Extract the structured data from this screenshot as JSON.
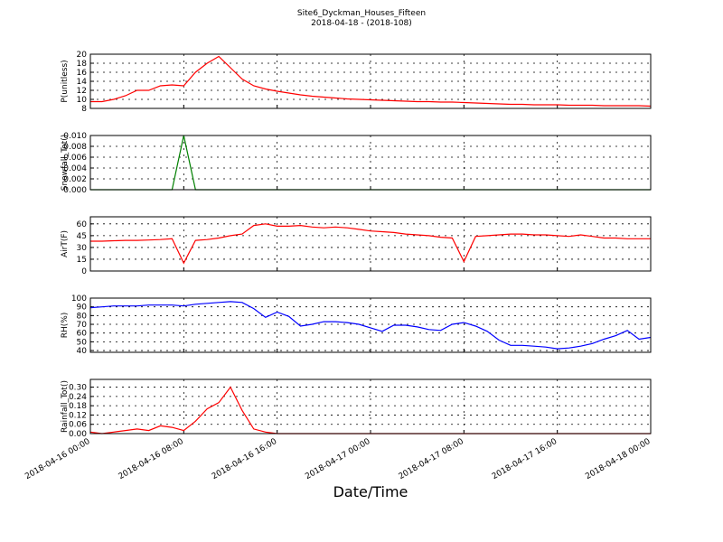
{
  "title": "Site6_Dyckman_Houses_Fifteen",
  "subtitle": "2018-04-18 - (2018-108)",
  "x_axis": {
    "label": "Date/Time",
    "xlim": [
      "2018-04-16 00:00",
      "2018-04-18 00:00"
    ],
    "xticks": [
      "2018-04-16 00:00",
      "2018-04-16 08:00",
      "2018-04-16 16:00",
      "2018-04-17 00:00",
      "2018-04-17 08:00",
      "2018-04-17 16:00",
      "2018-04-18 00:00"
    ],
    "x": [
      "2018-04-16 00:00",
      "2018-04-16 01:00",
      "2018-04-16 02:00",
      "2018-04-16 03:00",
      "2018-04-16 04:00",
      "2018-04-16 05:00",
      "2018-04-16 06:00",
      "2018-04-16 07:00",
      "2018-04-16 08:00",
      "2018-04-16 09:00",
      "2018-04-16 10:00",
      "2018-04-16 11:00",
      "2018-04-16 12:00",
      "2018-04-16 13:00",
      "2018-04-16 14:00",
      "2018-04-16 15:00",
      "2018-04-16 16:00",
      "2018-04-16 17:00",
      "2018-04-16 18:00",
      "2018-04-16 19:00",
      "2018-04-16 20:00",
      "2018-04-16 21:00",
      "2018-04-16 22:00",
      "2018-04-16 23:00",
      "2018-04-17 00:00",
      "2018-04-17 01:00",
      "2018-04-17 02:00",
      "2018-04-17 03:00",
      "2018-04-17 04:00",
      "2018-04-17 05:00",
      "2018-04-17 06:00",
      "2018-04-17 07:00",
      "2018-04-17 08:00",
      "2018-04-17 09:00",
      "2018-04-17 10:00",
      "2018-04-17 11:00",
      "2018-04-17 12:00",
      "2018-04-17 13:00",
      "2018-04-17 14:00",
      "2018-04-17 15:00",
      "2018-04-17 16:00",
      "2018-04-17 17:00",
      "2018-04-17 18:00",
      "2018-04-17 19:00",
      "2018-04-17 20:00",
      "2018-04-17 21:00",
      "2018-04-17 22:00",
      "2018-04-17 23:00",
      "2018-04-18 00:00"
    ]
  },
  "chart_data": [
    {
      "type": "line",
      "ylabel": "P(unitless)",
      "color": "#ff0000",
      "ylim": [
        8,
        20
      ],
      "yticks": [
        8,
        10,
        12,
        14,
        16,
        18,
        20
      ],
      "grid": true,
      "values": [
        9.5,
        9.5,
        10,
        10.8,
        12,
        12,
        13,
        13.2,
        13,
        16,
        18,
        19.5,
        17,
        14.5,
        13,
        12.3,
        11.8,
        11.4,
        11,
        10.7,
        10.5,
        10.3,
        10.1,
        10,
        9.9,
        9.8,
        9.7,
        9.6,
        9.5,
        9.5,
        9.4,
        9.4,
        9.3,
        9.2,
        9.1,
        9.0,
        8.9,
        8.9,
        8.8,
        8.8,
        8.8,
        8.7,
        8.7,
        8.7,
        8.6,
        8.6,
        8.6,
        8.6,
        8.5
      ]
    },
    {
      "type": "line",
      "ylabel": "Snowfall_Tot()",
      "color": "#008000",
      "ylim": [
        0,
        0.01
      ],
      "yticks": [
        {
          "value": 0,
          "label": "0.000"
        },
        {
          "value": 0.002,
          "label": "0.002"
        },
        {
          "value": 0.004,
          "label": "0.004"
        },
        {
          "value": 0.006,
          "label": "0.006"
        },
        {
          "value": 0.008,
          "label": "0.008"
        },
        {
          "value": 0.01,
          "label": "0.010"
        }
      ],
      "grid": true,
      "values": [
        0,
        0,
        0,
        0,
        0,
        0,
        0,
        0,
        0.01,
        0,
        0,
        0,
        0,
        0,
        0,
        0,
        0,
        0,
        0,
        0,
        0,
        0,
        0,
        0,
        0,
        0,
        0,
        0,
        0,
        0,
        0,
        0,
        0,
        0,
        0,
        0,
        0,
        0,
        0,
        0,
        0,
        0,
        0,
        0,
        0,
        0,
        0,
        0,
        0
      ]
    },
    {
      "type": "line",
      "ylabel": "AirT(F)",
      "color": "#ff0000",
      "ylim": [
        0,
        69
      ],
      "yticks": [
        0,
        15,
        30,
        45,
        60
      ],
      "grid": true,
      "values": [
        38,
        38,
        38.5,
        39,
        39,
        39.5,
        40,
        41,
        10,
        39,
        40,
        42,
        45,
        47,
        58,
        60,
        57,
        57,
        58,
        56,
        55,
        56,
        55,
        53,
        51,
        50,
        49,
        47,
        46,
        45,
        43,
        42,
        12,
        44,
        45,
        46,
        47,
        47,
        46,
        46,
        45,
        44,
        46,
        44,
        42,
        42,
        41,
        41,
        41
      ]
    },
    {
      "type": "line",
      "ylabel": "RH(%)",
      "color": "#0000ff",
      "ylim": [
        38,
        100
      ],
      "yticks": [
        40,
        50,
        60,
        70,
        80,
        90,
        100
      ],
      "grid": true,
      "values": [
        89,
        90,
        91,
        91,
        91,
        92,
        92,
        92,
        91,
        93,
        94,
        95,
        96,
        95,
        88,
        78,
        84,
        79,
        68,
        70,
        73,
        73,
        72,
        70,
        66,
        62,
        69,
        69,
        67,
        64,
        63,
        70,
        72,
        68,
        62,
        52,
        46,
        46,
        45,
        44,
        42,
        43,
        45,
        48,
        53,
        57,
        63,
        53,
        55
      ]
    },
    {
      "type": "line",
      "ylabel": "Rainfall_Tot()",
      "color": "#ff0000",
      "ylim": [
        0,
        0.35
      ],
      "yticks": [
        {
          "value": 0,
          "label": "0.00"
        },
        {
          "value": 0.06,
          "label": "0.06"
        },
        {
          "value": 0.12,
          "label": "0.12"
        },
        {
          "value": 0.18,
          "label": "0.18"
        },
        {
          "value": 0.24,
          "label": "0.24"
        },
        {
          "value": 0.3,
          "label": "0.30"
        }
      ],
      "grid": true,
      "values": [
        0.01,
        0,
        0.01,
        0.02,
        0.03,
        0.02,
        0.05,
        0.04,
        0.02,
        0.08,
        0.16,
        0.2,
        0.3,
        0.15,
        0.03,
        0.01,
        0,
        0,
        0,
        0,
        0,
        0,
        0,
        0,
        0,
        0,
        0,
        0,
        0,
        0,
        0,
        0,
        0,
        0,
        0,
        0,
        0,
        0,
        0,
        0,
        0,
        0,
        0,
        0,
        0,
        0,
        0,
        0,
        0
      ]
    }
  ]
}
